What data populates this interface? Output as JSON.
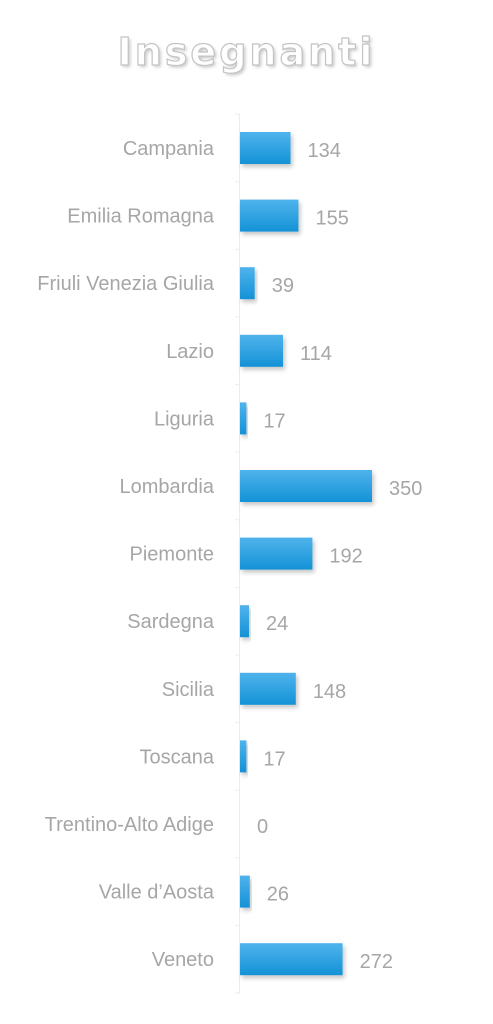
{
  "chart_data": {
    "type": "bar",
    "orientation": "horizontal",
    "title": "Insegnanti",
    "categories": [
      "Campania",
      "Emilia Romagna",
      "Friuli Venezia Giulia",
      "Lazio",
      "Liguria",
      "Lombardia",
      "Piemonte",
      "Sardegna",
      "Sicilia",
      "Toscana",
      "Trentino-Alto Adige",
      "Valle d’Aosta",
      "Veneto"
    ],
    "values": [
      134,
      155,
      39,
      114,
      17,
      350,
      192,
      24,
      148,
      17,
      0,
      26,
      272
    ],
    "data_labels": [
      "134",
      "155",
      "39",
      "114",
      "17",
      "350",
      "192",
      "24",
      "148",
      "17",
      "0",
      "26",
      "272"
    ],
    "xlabel": "",
    "ylabel": "",
    "xlim": [
      0,
      350
    ],
    "grid": false,
    "legend": "none",
    "colors": {
      "bar_top": "#4fb3ec",
      "bar_bottom": "#1492d6",
      "label": "#a6a6a6",
      "axis": "#ececec",
      "title_outline": "#c4c4c4"
    }
  }
}
